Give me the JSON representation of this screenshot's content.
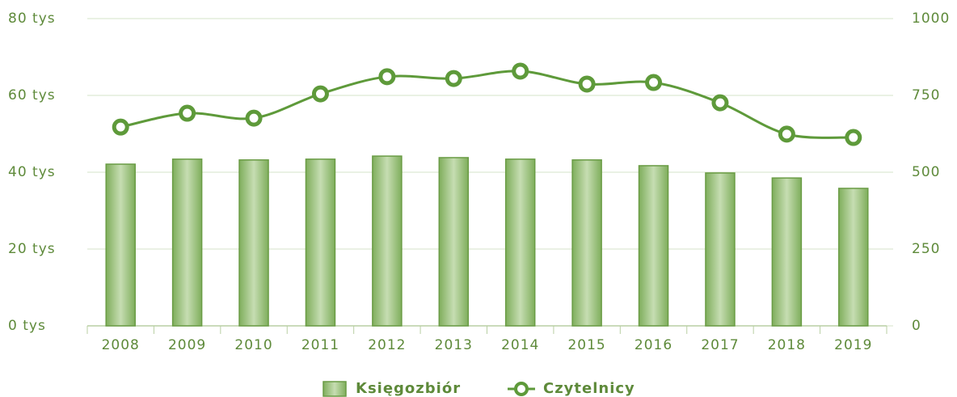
{
  "chart_data": {
    "type": "bar-line",
    "categories": [
      "2008",
      "2009",
      "2010",
      "2011",
      "2012",
      "2013",
      "2014",
      "2015",
      "2016",
      "2017",
      "2018",
      "2019"
    ],
    "series": [
      {
        "name": "Księgozbiór",
        "type": "bar",
        "color": "#6a9c45",
        "values": [
          42.1,
          43.4,
          43.2,
          43.4,
          44.2,
          43.8,
          43.4,
          43.2,
          41.7,
          39.8,
          38.5,
          35.8
        ]
      },
      {
        "name": "Czytelnicy",
        "type": "line",
        "axis": "y2",
        "color": "#5e9a3a",
        "values": [
          647,
          692,
          676,
          755,
          811,
          805,
          829,
          787,
          792,
          726,
          624,
          613
        ]
      }
    ],
    "ylim": [
      0,
      80
    ],
    "yticks": [
      {
        "value": 0,
        "label": "0 tys"
      },
      {
        "value": 20,
        "label": "20 tys"
      },
      {
        "value": 40,
        "label": "40 tys"
      },
      {
        "value": 60,
        "label": "60 tys"
      },
      {
        "value": 80,
        "label": "80 tys"
      }
    ],
    "y2lim": [
      0,
      1000
    ],
    "y2ticks": [
      0,
      250,
      500,
      750,
      1000
    ],
    "grid": true,
    "legend": "bottom"
  }
}
